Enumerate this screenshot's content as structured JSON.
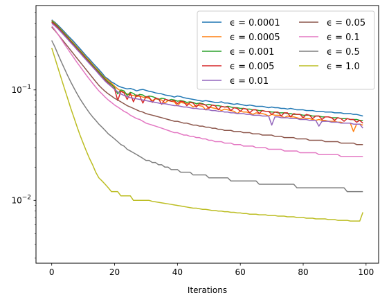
{
  "chart_data": {
    "type": "line",
    "xlabel": "Iterations",
    "ylabel": "",
    "yscale": "log",
    "xlim": [
      -5,
      104
    ],
    "ylim": [
      0.0027,
      0.58
    ],
    "xticks": [
      0,
      20,
      40,
      60,
      80,
      100
    ],
    "yticks": [
      {
        "value": 0.1,
        "label": "10",
        "exp": "−1"
      },
      {
        "value": 0.01,
        "label": "10",
        "exp": "−2"
      }
    ],
    "grid": false,
    "legend": {
      "position": "top-right",
      "columns": 2
    },
    "x": "0..99 (integer iterations)",
    "series": [
      {
        "name": "ϵ = 0.0001",
        "color": "#1f77b4",
        "values": [
          0.43,
          0.409,
          0.385,
          0.36,
          0.336,
          0.313,
          0.293,
          0.274,
          0.254,
          0.236,
          0.219,
          0.203,
          0.19,
          0.176,
          0.164,
          0.153,
          0.142,
          0.131,
          0.125,
          0.118,
          0.114,
          0.109,
          0.106,
          0.104,
          0.102,
          0.103,
          0.101,
          0.098,
          0.1,
          0.101,
          0.099,
          0.097,
          0.096,
          0.094,
          0.093,
          0.092,
          0.09,
          0.089,
          0.088,
          0.086,
          0.088,
          0.087,
          0.085,
          0.084,
          0.083,
          0.082,
          0.081,
          0.08,
          0.079,
          0.08,
          0.079,
          0.078,
          0.077,
          0.077,
          0.078,
          0.076,
          0.076,
          0.075,
          0.074,
          0.075,
          0.074,
          0.073,
          0.072,
          0.073,
          0.072,
          0.071,
          0.071,
          0.071,
          0.07,
          0.069,
          0.07,
          0.069,
          0.069,
          0.068,
          0.068,
          0.067,
          0.068,
          0.067,
          0.066,
          0.066,
          0.066,
          0.065,
          0.065,
          0.065,
          0.064,
          0.064,
          0.064,
          0.063,
          0.063,
          0.063,
          0.062,
          0.062,
          0.062,
          0.061,
          0.061,
          0.061,
          0.06,
          0.06,
          0.059,
          0.058
        ]
      },
      {
        "name": "ϵ = 0.0005",
        "color": "#ff7f0e",
        "values": [
          0.425,
          0.403,
          0.376,
          0.351,
          0.327,
          0.305,
          0.283,
          0.264,
          0.245,
          0.228,
          0.212,
          0.196,
          0.184,
          0.17,
          0.158,
          0.148,
          0.137,
          0.128,
          0.122,
          0.115,
          0.108,
          0.102,
          0.098,
          0.095,
          0.092,
          0.09,
          0.089,
          0.087,
          0.088,
          0.086,
          0.085,
          0.084,
          0.08,
          0.083,
          0.082,
          0.081,
          0.076,
          0.08,
          0.079,
          0.078,
          0.072,
          0.077,
          0.076,
          0.075,
          0.074,
          0.07,
          0.073,
          0.072,
          0.071,
          0.066,
          0.07,
          0.069,
          0.068,
          0.067,
          0.065,
          0.067,
          0.066,
          0.065,
          0.064,
          0.061,
          0.064,
          0.063,
          0.063,
          0.062,
          0.06,
          0.062,
          0.061,
          0.061,
          0.06,
          0.058,
          0.06,
          0.059,
          0.059,
          0.058,
          0.056,
          0.058,
          0.057,
          0.057,
          0.056,
          0.055,
          0.056,
          0.055,
          0.055,
          0.054,
          0.053,
          0.054,
          0.053,
          0.053,
          0.052,
          0.052,
          0.052,
          0.051,
          0.051,
          0.05,
          0.05,
          0.05,
          0.042,
          0.049,
          0.049,
          0.048
        ]
      },
      {
        "name": "ϵ = 0.001",
        "color": "#2ca02c",
        "values": [
          0.42,
          0.398,
          0.372,
          0.347,
          0.323,
          0.3,
          0.279,
          0.26,
          0.241,
          0.224,
          0.208,
          0.193,
          0.18,
          0.167,
          0.155,
          0.145,
          0.135,
          0.125,
          0.118,
          0.112,
          0.105,
          0.092,
          0.1,
          0.098,
          0.089,
          0.095,
          0.093,
          0.088,
          0.091,
          0.09,
          0.086,
          0.088,
          0.087,
          0.085,
          0.082,
          0.084,
          0.083,
          0.08,
          0.082,
          0.081,
          0.079,
          0.08,
          0.079,
          0.077,
          0.078,
          0.077,
          0.075,
          0.076,
          0.075,
          0.073,
          0.074,
          0.073,
          0.072,
          0.072,
          0.071,
          0.07,
          0.071,
          0.07,
          0.069,
          0.069,
          0.068,
          0.068,
          0.067,
          0.067,
          0.066,
          0.066,
          0.065,
          0.065,
          0.064,
          0.064,
          0.063,
          0.063,
          0.062,
          0.062,
          0.062,
          0.061,
          0.061,
          0.06,
          0.06,
          0.06,
          0.059,
          0.059,
          0.059,
          0.058,
          0.058,
          0.058,
          0.057,
          0.057,
          0.057,
          0.056,
          0.056,
          0.056,
          0.055,
          0.055,
          0.055,
          0.054,
          0.054,
          0.054,
          0.053,
          0.053
        ]
      },
      {
        "name": "ϵ = 0.005",
        "color": "#d62728",
        "values": [
          0.41,
          0.39,
          0.365,
          0.34,
          0.316,
          0.294,
          0.273,
          0.254,
          0.236,
          0.219,
          0.204,
          0.189,
          0.176,
          0.163,
          0.152,
          0.141,
          0.131,
          0.122,
          0.115,
          0.108,
          0.102,
          0.08,
          0.097,
          0.094,
          0.082,
          0.093,
          0.078,
          0.09,
          0.088,
          0.076,
          0.087,
          0.086,
          0.077,
          0.084,
          0.083,
          0.074,
          0.082,
          0.081,
          0.079,
          0.08,
          0.075,
          0.079,
          0.078,
          0.072,
          0.077,
          0.076,
          0.07,
          0.075,
          0.074,
          0.073,
          0.068,
          0.073,
          0.072,
          0.066,
          0.071,
          0.07,
          0.07,
          0.065,
          0.069,
          0.068,
          0.064,
          0.068,
          0.067,
          0.062,
          0.066,
          0.066,
          0.061,
          0.065,
          0.064,
          0.064,
          0.06,
          0.063,
          0.063,
          0.058,
          0.062,
          0.062,
          0.057,
          0.061,
          0.06,
          0.06,
          0.056,
          0.06,
          0.059,
          0.055,
          0.058,
          0.058,
          0.054,
          0.057,
          0.057,
          0.056,
          0.053,
          0.056,
          0.055,
          0.052,
          0.055,
          0.054,
          0.054,
          0.051,
          0.053,
          0.05
        ]
      },
      {
        "name": "ϵ = 0.01",
        "color": "#9467bd",
        "values": [
          0.4,
          0.38,
          0.357,
          0.333,
          0.31,
          0.289,
          0.268,
          0.25,
          0.232,
          0.216,
          0.2,
          0.186,
          0.173,
          0.161,
          0.15,
          0.139,
          0.129,
          0.12,
          0.113,
          0.107,
          0.101,
          0.096,
          0.092,
          0.089,
          0.087,
          0.085,
          0.084,
          0.083,
          0.082,
          0.081,
          0.08,
          0.079,
          0.078,
          0.077,
          0.076,
          0.075,
          0.075,
          0.074,
          0.073,
          0.072,
          0.072,
          0.071,
          0.07,
          0.07,
          0.069,
          0.068,
          0.068,
          0.067,
          0.067,
          0.066,
          0.066,
          0.065,
          0.065,
          0.064,
          0.064,
          0.063,
          0.063,
          0.062,
          0.062,
          0.061,
          0.061,
          0.061,
          0.06,
          0.06,
          0.059,
          0.059,
          0.059,
          0.058,
          0.058,
          0.058,
          0.048,
          0.057,
          0.057,
          0.056,
          0.056,
          0.056,
          0.055,
          0.055,
          0.055,
          0.054,
          0.054,
          0.054,
          0.053,
          0.053,
          0.053,
          0.047,
          0.052,
          0.052,
          0.052,
          0.051,
          0.051,
          0.051,
          0.05,
          0.05,
          0.05,
          0.05,
          0.049,
          0.049,
          0.049,
          0.045
        ]
      },
      {
        "name": "ϵ = 0.05",
        "color": "#8c564b",
        "values": [
          0.37,
          0.345,
          0.318,
          0.293,
          0.27,
          0.249,
          0.229,
          0.211,
          0.194,
          0.179,
          0.165,
          0.152,
          0.14,
          0.129,
          0.119,
          0.11,
          0.103,
          0.097,
          0.092,
          0.088,
          0.084,
          0.081,
          0.078,
          0.075,
          0.072,
          0.07,
          0.068,
          0.066,
          0.064,
          0.063,
          0.061,
          0.06,
          0.059,
          0.058,
          0.057,
          0.056,
          0.055,
          0.054,
          0.053,
          0.052,
          0.052,
          0.051,
          0.05,
          0.05,
          0.049,
          0.048,
          0.048,
          0.047,
          0.047,
          0.046,
          0.046,
          0.045,
          0.045,
          0.044,
          0.044,
          0.043,
          0.043,
          0.043,
          0.042,
          0.042,
          0.042,
          0.041,
          0.041,
          0.041,
          0.04,
          0.04,
          0.04,
          0.039,
          0.039,
          0.039,
          0.039,
          0.038,
          0.038,
          0.038,
          0.037,
          0.037,
          0.037,
          0.037,
          0.036,
          0.036,
          0.036,
          0.036,
          0.035,
          0.035,
          0.035,
          0.035,
          0.035,
          0.034,
          0.034,
          0.034,
          0.034,
          0.034,
          0.033,
          0.033,
          0.033,
          0.033,
          0.033,
          0.032,
          0.032,
          0.032
        ]
      },
      {
        "name": "ϵ = 0.1",
        "color": "#e377c2",
        "values": [
          0.38,
          0.35,
          0.318,
          0.288,
          0.261,
          0.237,
          0.215,
          0.196,
          0.178,
          0.163,
          0.149,
          0.136,
          0.125,
          0.115,
          0.106,
          0.098,
          0.092,
          0.086,
          0.081,
          0.077,
          0.073,
          0.07,
          0.067,
          0.064,
          0.062,
          0.059,
          0.057,
          0.055,
          0.054,
          0.052,
          0.05,
          0.049,
          0.048,
          0.047,
          0.046,
          0.045,
          0.044,
          0.043,
          0.042,
          0.041,
          0.041,
          0.04,
          0.039,
          0.039,
          0.038,
          0.038,
          0.037,
          0.037,
          0.036,
          0.036,
          0.035,
          0.035,
          0.034,
          0.034,
          0.034,
          0.033,
          0.033,
          0.033,
          0.032,
          0.032,
          0.032,
          0.031,
          0.031,
          0.031,
          0.031,
          0.03,
          0.03,
          0.03,
          0.03,
          0.029,
          0.029,
          0.029,
          0.029,
          0.029,
          0.028,
          0.028,
          0.028,
          0.028,
          0.028,
          0.027,
          0.027,
          0.027,
          0.027,
          0.027,
          0.027,
          0.026,
          0.026,
          0.026,
          0.026,
          0.026,
          0.026,
          0.026,
          0.025,
          0.025,
          0.025,
          0.025,
          0.025,
          0.025,
          0.025,
          0.025
        ]
      },
      {
        "name": "ϵ = 0.5",
        "color": "#7f7f7f",
        "values": [
          0.28,
          0.245,
          0.21,
          0.181,
          0.157,
          0.136,
          0.119,
          0.105,
          0.093,
          0.083,
          0.075,
          0.068,
          0.062,
          0.057,
          0.053,
          0.049,
          0.046,
          0.043,
          0.04,
          0.038,
          0.036,
          0.034,
          0.032,
          0.031,
          0.029,
          0.028,
          0.027,
          0.026,
          0.025,
          0.024,
          0.023,
          0.023,
          0.022,
          0.022,
          0.021,
          0.021,
          0.02,
          0.02,
          0.019,
          0.019,
          0.019,
          0.018,
          0.018,
          0.018,
          0.018,
          0.017,
          0.017,
          0.017,
          0.017,
          0.017,
          0.016,
          0.016,
          0.016,
          0.016,
          0.016,
          0.016,
          0.016,
          0.015,
          0.015,
          0.015,
          0.015,
          0.015,
          0.015,
          0.015,
          0.015,
          0.015,
          0.014,
          0.014,
          0.014,
          0.014,
          0.014,
          0.014,
          0.014,
          0.014,
          0.014,
          0.014,
          0.014,
          0.014,
          0.013,
          0.013,
          0.013,
          0.013,
          0.013,
          0.013,
          0.013,
          0.013,
          0.013,
          0.013,
          0.013,
          0.013,
          0.013,
          0.013,
          0.013,
          0.013,
          0.012,
          0.012,
          0.012,
          0.012,
          0.012,
          0.012
        ]
      },
      {
        "name": "ϵ = 1.0",
        "color": "#bcbd22",
        "values": [
          0.24,
          0.195,
          0.158,
          0.128,
          0.104,
          0.085,
          0.069,
          0.057,
          0.047,
          0.039,
          0.033,
          0.028,
          0.024,
          0.021,
          0.018,
          0.016,
          0.015,
          0.014,
          0.013,
          0.012,
          0.012,
          0.012,
          0.011,
          0.011,
          0.011,
          0.011,
          0.01,
          0.01,
          0.01,
          0.01,
          0.01,
          0.01,
          0.0098,
          0.0097,
          0.0096,
          0.0095,
          0.0094,
          0.0093,
          0.0092,
          0.0091,
          0.009,
          0.0089,
          0.0088,
          0.0087,
          0.0086,
          0.0085,
          0.0085,
          0.0084,
          0.0083,
          0.0083,
          0.0082,
          0.0081,
          0.0081,
          0.008,
          0.008,
          0.0079,
          0.0079,
          0.0078,
          0.0078,
          0.0077,
          0.0077,
          0.0076,
          0.0076,
          0.0075,
          0.0075,
          0.0075,
          0.0074,
          0.0074,
          0.0074,
          0.0073,
          0.0073,
          0.0073,
          0.0072,
          0.0072,
          0.0072,
          0.0071,
          0.0071,
          0.0071,
          0.007,
          0.007,
          0.007,
          0.0069,
          0.0069,
          0.0069,
          0.0068,
          0.0068,
          0.0068,
          0.0068,
          0.0067,
          0.0067,
          0.0067,
          0.0066,
          0.0066,
          0.0066,
          0.0066,
          0.0065,
          0.0065,
          0.0065,
          0.0065,
          0.0078
        ]
      }
    ]
  }
}
